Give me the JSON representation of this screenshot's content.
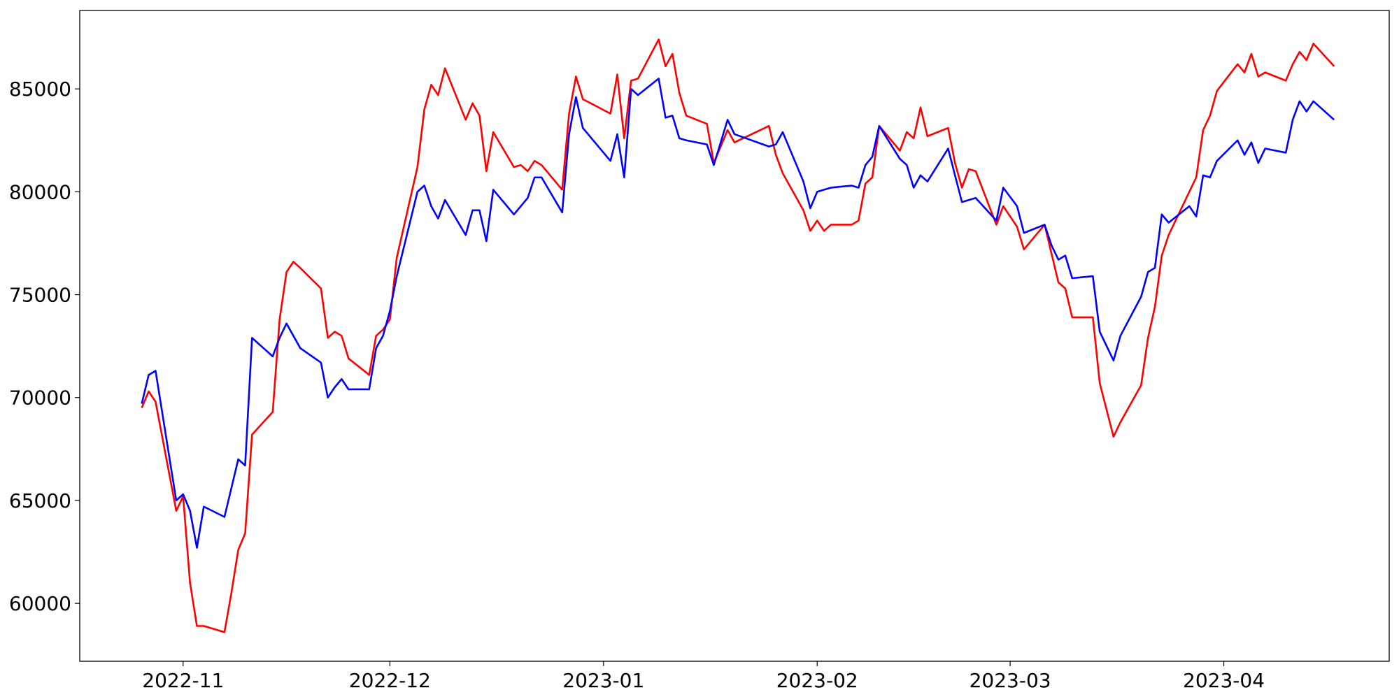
{
  "chart_data": {
    "type": "line",
    "x": [
      "2022-10-26",
      "2022-10-27",
      "2022-10-28",
      "2022-10-31",
      "2022-11-01",
      "2022-11-02",
      "2022-11-03",
      "2022-11-04",
      "2022-11-07",
      "2022-11-08",
      "2022-11-09",
      "2022-11-10",
      "2022-11-11",
      "2022-11-14",
      "2022-11-15",
      "2022-11-16",
      "2022-11-17",
      "2022-11-18",
      "2022-11-21",
      "2022-11-22",
      "2022-11-23",
      "2022-11-24",
      "2022-11-25",
      "2022-11-28",
      "2022-11-29",
      "2022-11-30",
      "2022-12-01",
      "2022-12-02",
      "2022-12-05",
      "2022-12-06",
      "2022-12-07",
      "2022-12-08",
      "2022-12-09",
      "2022-12-12",
      "2022-12-13",
      "2022-12-14",
      "2022-12-15",
      "2022-12-16",
      "2022-12-19",
      "2022-12-20",
      "2022-12-21",
      "2022-12-22",
      "2022-12-23",
      "2022-12-26",
      "2022-12-27",
      "2022-12-28",
      "2022-12-29",
      "2023-01-02",
      "2023-01-03",
      "2023-01-04",
      "2023-01-05",
      "2023-01-06",
      "2023-01-09",
      "2023-01-10",
      "2023-01-11",
      "2023-01-12",
      "2023-01-13",
      "2023-01-16",
      "2023-01-17",
      "2023-01-19",
      "2023-01-20",
      "2023-01-25",
      "2023-01-26",
      "2023-01-27",
      "2023-01-30",
      "2023-01-31",
      "2023-02-01",
      "2023-02-02",
      "2023-02-03",
      "2023-02-06",
      "2023-02-07",
      "2023-02-08",
      "2023-02-09",
      "2023-02-10",
      "2023-02-13",
      "2023-02-14",
      "2023-02-15",
      "2023-02-16",
      "2023-02-17",
      "2023-02-20",
      "2023-02-21",
      "2023-02-22",
      "2023-02-23",
      "2023-02-24",
      "2023-02-27",
      "2023-02-28",
      "2023-03-02",
      "2023-03-03",
      "2023-03-06",
      "2023-03-07",
      "2023-03-08",
      "2023-03-09",
      "2023-03-10",
      "2023-03-13",
      "2023-03-14",
      "2023-03-16",
      "2023-03-17",
      "2023-03-20",
      "2023-03-21",
      "2023-03-22",
      "2023-03-23",
      "2023-03-24",
      "2023-03-27",
      "2023-03-28",
      "2023-03-29",
      "2023-03-30",
      "2023-03-31",
      "2023-04-03",
      "2023-04-04",
      "2023-04-05",
      "2023-04-06",
      "2023-04-07",
      "2023-04-10",
      "2023-04-11",
      "2023-04-12",
      "2023-04-13",
      "2023-04-14",
      "2023-04-17"
    ],
    "series": [
      {
        "color": "#ff0000",
        "values": [
          69500,
          70300,
          69800,
          64500,
          65200,
          61000,
          58900,
          58900,
          58600,
          60500,
          62600,
          63400,
          68200,
          69300,
          73800,
          76100,
          76600,
          76300,
          75300,
          72900,
          73200,
          73000,
          71900,
          71100,
          73000,
          73300,
          73800,
          76800,
          81200,
          84000,
          85200,
          84700,
          86000,
          83500,
          84300,
          83700,
          81000,
          82900,
          81200,
          81300,
          81000,
          81500,
          81300,
          80100,
          83800,
          85600,
          84500,
          83800,
          85700,
          82600,
          85400,
          85500,
          87400,
          86100,
          86700,
          84800,
          83700,
          83300,
          81400,
          83000,
          82400,
          83200,
          81800,
          80900,
          79100,
          78100,
          78600,
          78100,
          78400,
          78400,
          78600,
          80400,
          80700,
          83200,
          82000,
          82900,
          82600,
          84100,
          82700,
          83100,
          81400,
          80200,
          81100,
          81000,
          78400,
          79300,
          78300,
          77200,
          78400,
          77000,
          75600,
          75300,
          73900,
          73900,
          70700,
          68100,
          68800,
          70600,
          72900,
          74400,
          76900,
          77900,
          80000,
          80700,
          83000,
          83700,
          84900,
          86200,
          85800,
          86700,
          85600,
          85800,
          85400,
          86200,
          86800,
          86400,
          87200,
          86100
        ]
      },
      {
        "color": "#0000ff",
        "values": [
          69700,
          71100,
          71300,
          65000,
          65300,
          64500,
          62700,
          64700,
          64200,
          65600,
          67000,
          66700,
          72900,
          72000,
          72900,
          73600,
          73000,
          72400,
          71700,
          70000,
          70500,
          70900,
          70400,
          70400,
          72400,
          73000,
          74200,
          75900,
          80000,
          80300,
          79300,
          78700,
          79600,
          77900,
          79100,
          79100,
          77600,
          80100,
          78900,
          79300,
          79700,
          80700,
          80700,
          79000,
          82800,
          84600,
          83100,
          81500,
          82800,
          80700,
          85000,
          84700,
          85500,
          83600,
          83700,
          82600,
          82500,
          82300,
          81300,
          83500,
          82800,
          82200,
          82300,
          82900,
          80500,
          79200,
          80000,
          80100,
          80200,
          80300,
          80200,
          81300,
          81700,
          83200,
          81600,
          81300,
          80200,
          80800,
          80500,
          82100,
          80800,
          79500,
          79600,
          79700,
          78600,
          80200,
          79300,
          78000,
          78400,
          77400,
          76700,
          76900,
          75800,
          75900,
          73200,
          71800,
          73000,
          74900,
          76100,
          76300,
          78900,
          78500,
          79300,
          78800,
          80800,
          80700,
          81500,
          82500,
          81800,
          82400,
          81400,
          82100,
          81900,
          83500,
          84400,
          83900,
          84400,
          83500
        ]
      }
    ],
    "xlim": [
      "2022-10-17",
      "2023-04-25"
    ],
    "xticks": [
      {
        "value": "2022-11-01",
        "label": "2022-11"
      },
      {
        "value": "2022-12-01",
        "label": "2022-12"
      },
      {
        "value": "2023-01-01",
        "label": "2023-01"
      },
      {
        "value": "2023-02-01",
        "label": "2023-02"
      },
      {
        "value": "2023-03-01",
        "label": "2023-03"
      },
      {
        "value": "2023-04-01",
        "label": "2023-04"
      }
    ],
    "ylim": [
      57185,
      88810
    ],
    "yticks": [
      60000,
      65000,
      70000,
      75000,
      80000,
      85000
    ],
    "grid": false
  }
}
